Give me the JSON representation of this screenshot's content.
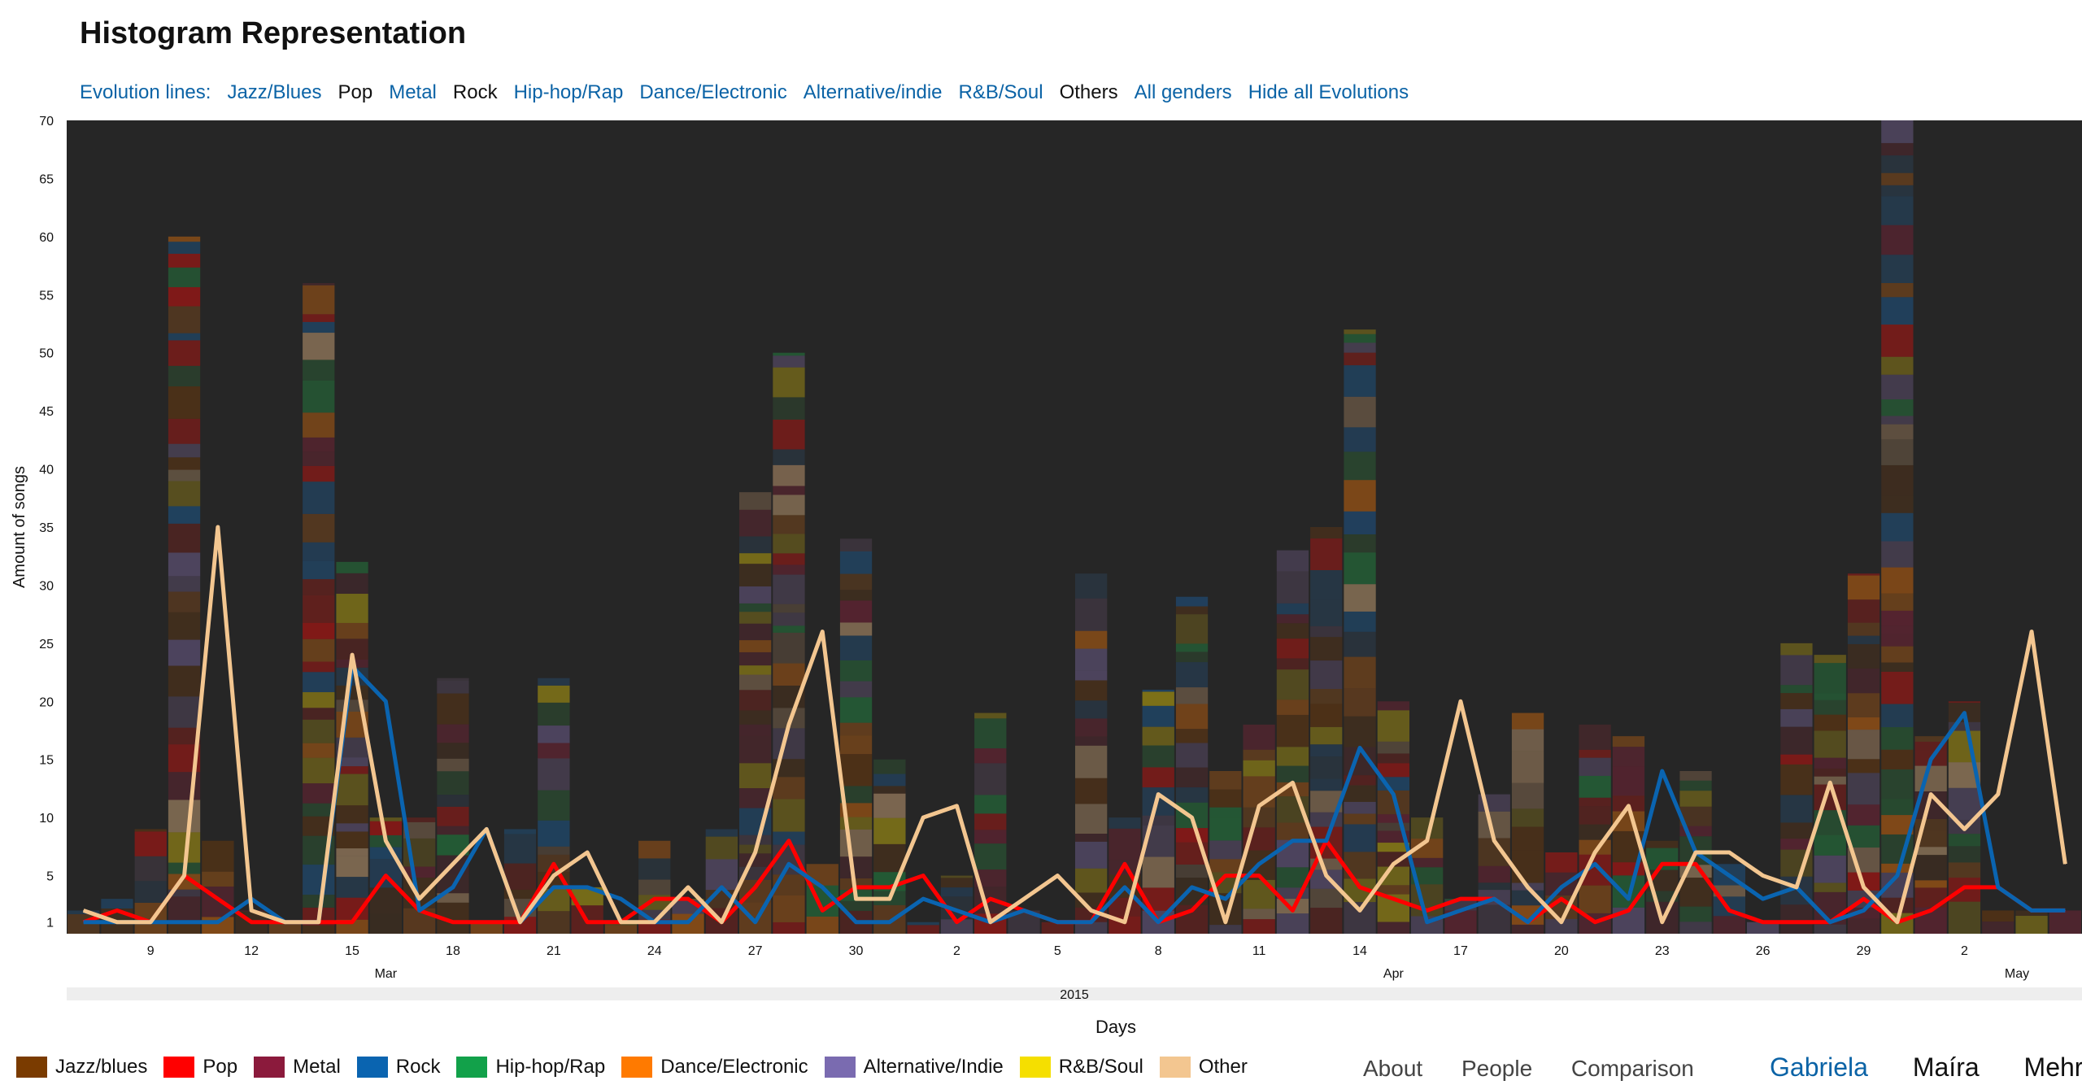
{
  "header": {
    "title": "Histogram Representation"
  },
  "evolution_bar": {
    "label": "Evolution lines:",
    "items": [
      {
        "label": "Jazz/Blues",
        "active": false
      },
      {
        "label": "Pop",
        "active": true
      },
      {
        "label": "Metal",
        "active": false
      },
      {
        "label": "Rock",
        "active": true
      },
      {
        "label": "Hip-hop/Rap",
        "active": false
      },
      {
        "label": "Dance/Electronic",
        "active": false
      },
      {
        "label": "Alternative/indie",
        "active": false
      },
      {
        "label": "R&B/Soul",
        "active": false
      },
      {
        "label": "Others",
        "active": true
      },
      {
        "label": "All genders",
        "active": false
      },
      {
        "label": "Hide all Evolutions",
        "active": false
      }
    ]
  },
  "chart_data": {
    "type": "bar",
    "ylabel": "Amount of songs",
    "xlabel": "Days",
    "ylim": [
      0,
      70
    ],
    "y_ticks": [
      "1",
      "5",
      "10",
      "15",
      "20",
      "25",
      "30",
      "35",
      "40",
      "45",
      "50",
      "55",
      "60",
      "65",
      "70"
    ],
    "x_tick_labels": [
      "9",
      "12",
      "15",
      "18",
      "21",
      "24",
      "27",
      "30",
      "2",
      "5",
      "8",
      "11",
      "14",
      "17",
      "20",
      "23",
      "26",
      "29",
      "2"
    ],
    "month_labels": [
      "Mar",
      "Apr",
      "May"
    ],
    "year_label": "2015",
    "days": [
      "Mar 7",
      "Mar 8",
      "Mar 9",
      "Mar 10",
      "Mar 11",
      "Mar 12",
      "Mar 13",
      "Mar 14",
      "Mar 15",
      "Mar 16",
      "Mar 17",
      "Mar 18",
      "Mar 19",
      "Mar 20",
      "Mar 21",
      "Mar 22",
      "Mar 23",
      "Mar 24",
      "Mar 25",
      "Mar 26",
      "Mar 27",
      "Mar 28",
      "Mar 29",
      "Mar 30",
      "Mar 31",
      "Apr 1",
      "Apr 2",
      "Apr 3",
      "Apr 4",
      "Apr 5",
      "Apr 6",
      "Apr 7",
      "Apr 8",
      "Apr 9",
      "Apr 10",
      "Apr 11",
      "Apr 12",
      "Apr 13",
      "Apr 14",
      "Apr 15",
      "Apr 16",
      "Apr 17",
      "Apr 18",
      "Apr 19",
      "Apr 20",
      "Apr 21",
      "Apr 22",
      "Apr 23",
      "Apr 24",
      "Apr 25",
      "Apr 26",
      "Apr 27",
      "Apr 28",
      "Apr 29",
      "Apr 30",
      "May 1",
      "May 2",
      "May 3",
      "May 4",
      "May 5"
    ],
    "totals": [
      2,
      3,
      9,
      60,
      8,
      2,
      1,
      56,
      32,
      10,
      10,
      22,
      1,
      9,
      22,
      4,
      1,
      8,
      3,
      9,
      38,
      50,
      6,
      34,
      15,
      1,
      5,
      19,
      2,
      1,
      31,
      10,
      21,
      29,
      14,
      18,
      33,
      35,
      52,
      20,
      10,
      3,
      12,
      19,
      7,
      18,
      17,
      8,
      14,
      6,
      1,
      25,
      24,
      31,
      70,
      17,
      20,
      2,
      2,
      2
    ],
    "genre_colors": {
      "Jazz/blues": "#7a3b00",
      "Pop": "#ff0000",
      "Metal": "#8b1a3c",
      "Rock": "#0a64b0",
      "Hip-hop/Rap": "#12a14a",
      "Dance/Electronic": "#ff7a00",
      "Alternative/Indie": "#7a6bb0",
      "R&B/Soul": "#f5df00",
      "Other": "#f3c690"
    },
    "series": [
      {
        "name": "Pop",
        "color": "#ff0000",
        "values": [
          1,
          2,
          1,
          5,
          3,
          1,
          1,
          1,
          1,
          5,
          2,
          1,
          1,
          1,
          6,
          1,
          1,
          3,
          3,
          1,
          4,
          8,
          2,
          4,
          4,
          5,
          1,
          3,
          2,
          1,
          1,
          6,
          1,
          2,
          5,
          5,
          2,
          8,
          4,
          3,
          2,
          3,
          3,
          1,
          3,
          1,
          2,
          6,
          6,
          2,
          1,
          1,
          1,
          3,
          1,
          2,
          4,
          4,
          2,
          2
        ]
      },
      {
        "name": "Rock",
        "color": "#0a64b0",
        "values": [
          1,
          1,
          1,
          1,
          1,
          3,
          1,
          1,
          23,
          20,
          2,
          4,
          9,
          1,
          4,
          4,
          3,
          1,
          1,
          4,
          1,
          6,
          4,
          1,
          1,
          3,
          2,
          1,
          2,
          1,
          1,
          4,
          1,
          4,
          3,
          6,
          8,
          8,
          16,
          12,
          1,
          2,
          3,
          1,
          4,
          6,
          3,
          14,
          7,
          5,
          3,
          4,
          1,
          2,
          5,
          15,
          19,
          4,
          2,
          2
        ]
      },
      {
        "name": "Other",
        "color": "#f3c690",
        "values": [
          2,
          1,
          1,
          5,
          35,
          2,
          1,
          1,
          24,
          8,
          3,
          6,
          9,
          1,
          5,
          7,
          1,
          1,
          4,
          1,
          7,
          18,
          26,
          3,
          3,
          10,
          11,
          1,
          3,
          5,
          2,
          1,
          12,
          10,
          1,
          11,
          13,
          5,
          2,
          6,
          8,
          20,
          8,
          4,
          1,
          7,
          11,
          1,
          7,
          7,
          5,
          4,
          13,
          4,
          1,
          12,
          9,
          12,
          26,
          6
        ]
      }
    ]
  },
  "legend": [
    {
      "label": "Jazz/blues",
      "color": "#7a3b00"
    },
    {
      "label": "Pop",
      "color": "#ff0000"
    },
    {
      "label": "Metal",
      "color": "#8b1a3c"
    },
    {
      "label": "Rock",
      "color": "#0a64b0"
    },
    {
      "label": "Hip-hop/Rap",
      "color": "#12a14a"
    },
    {
      "label": "Dance/Electronic",
      "color": "#ff7a00"
    },
    {
      "label": "Alternative/Indie",
      "color": "#7a6bb0"
    },
    {
      "label": "R&B/Soul",
      "color": "#f5df00"
    },
    {
      "label": "Other",
      "color": "#f3c690"
    }
  ],
  "nav": {
    "about": "About",
    "people": "People",
    "comparison": "Comparison"
  },
  "people": [
    {
      "name": "Gabriela",
      "color": "#0b63a6"
    },
    {
      "name": "Maíra",
      "color": "#111111"
    },
    {
      "name": "Mehreen",
      "color": "#111111"
    }
  ]
}
